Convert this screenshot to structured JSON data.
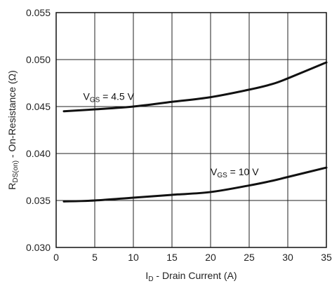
{
  "chart_data": {
    "type": "line",
    "title": "",
    "xlabel": {
      "main": "I",
      "sub": "D",
      "rest": " - Drain Current (A)"
    },
    "ylabel": {
      "main": "R",
      "sub": "DS(on)",
      "rest": " - On-Resistance (Ω)"
    },
    "xlim": [
      0,
      35
    ],
    "ylim": [
      0.03,
      0.055
    ],
    "xticks": [
      0,
      5,
      10,
      15,
      20,
      25,
      30,
      35
    ],
    "yticks": [
      0.03,
      0.035,
      0.04,
      0.045,
      0.05,
      0.055
    ],
    "xtick_labels": [
      "0",
      "5",
      "10",
      "15",
      "20",
      "25",
      "30",
      "35"
    ],
    "ytick_labels": [
      "0.030",
      "0.035",
      "0.040",
      "0.045",
      "0.050",
      "0.055"
    ],
    "grid": true,
    "line_color": "#111111",
    "grid_color": "#222222",
    "series": [
      {
        "annotation": {
          "main": "V",
          "sub": "GS",
          "rest": " = 4.5 V"
        },
        "x": [
          1,
          5,
          10,
          15,
          20,
          25,
          28,
          30,
          35
        ],
        "y": [
          0.0445,
          0.0447,
          0.045,
          0.0455,
          0.046,
          0.0468,
          0.0474,
          0.048,
          0.0497
        ]
      },
      {
        "annotation": {
          "main": "V",
          "sub": "GS",
          "rest": " = 10 V"
        },
        "x": [
          1,
          5,
          10,
          15,
          20,
          25,
          28,
          30,
          35
        ],
        "y": [
          0.0349,
          0.035,
          0.0353,
          0.0356,
          0.0359,
          0.0366,
          0.0371,
          0.0375,
          0.0385
        ]
      }
    ]
  }
}
